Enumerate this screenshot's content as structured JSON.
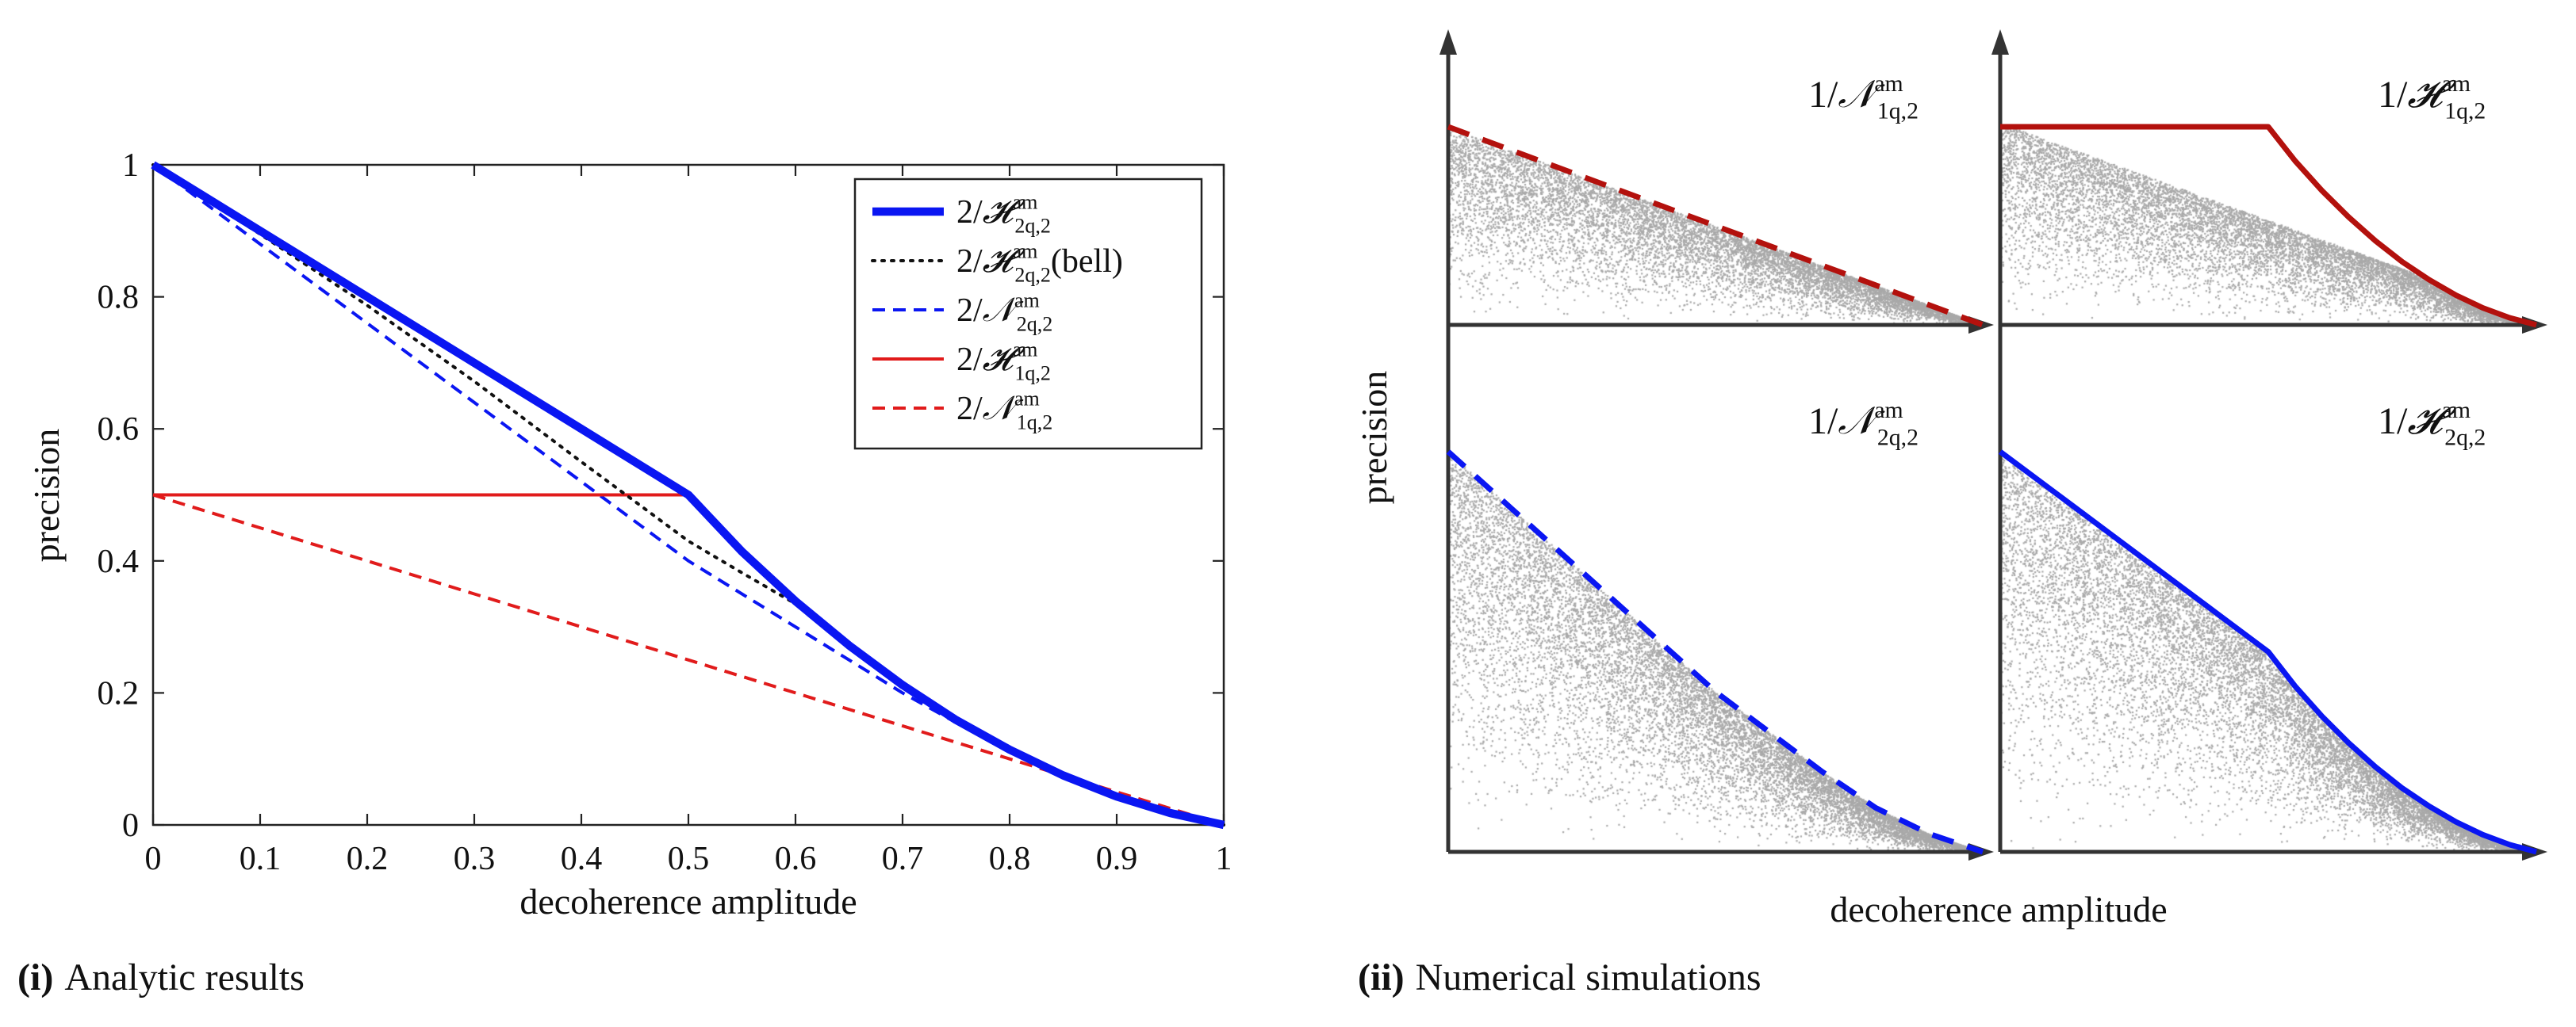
{
  "colors": {
    "blue": "#0a16f2",
    "red": "#e11b1b",
    "darkred": "#b3110d",
    "black": "#111111",
    "scatter": "#a9a9a9",
    "axis": "#333333"
  },
  "chart_data": [
    {
      "panel": "i",
      "type": "line",
      "title": "",
      "caption_tag": "(i)",
      "caption_text": "Analytic results",
      "xlabel": "decoherence amplitude",
      "ylabel": "precision",
      "xlim": [
        0,
        1
      ],
      "ylim": [
        0,
        1
      ],
      "xticks": [
        "0",
        "0.1",
        "0.2",
        "0.3",
        "0.4",
        "0.5",
        "0.6",
        "0.7",
        "0.8",
        "0.9",
        "1"
      ],
      "yticks": [
        "0",
        "0.2",
        "0.4",
        "0.6",
        "0.8",
        "1"
      ],
      "xtick_values": [
        0,
        0.1,
        0.2,
        0.3,
        0.4,
        0.5,
        0.6,
        0.7,
        0.8,
        0.9,
        1
      ],
      "ytick_values": [
        0,
        0.2,
        0.4,
        0.6,
        0.8,
        1
      ],
      "legend_position": "top-right",
      "series": [
        {
          "name": "2/H2q,2 am",
          "legend": {
            "pre": "2/",
            "sym": "𝓗",
            "sup": "am",
            "sub": "2q,2",
            "post": ""
          },
          "color": "blue",
          "style": "thick",
          "x": [
            0,
            0.1,
            0.2,
            0.3,
            0.4,
            0.5,
            0.55,
            0.6,
            0.65,
            0.7,
            0.75,
            0.8,
            0.85,
            0.9,
            0.95,
            1
          ],
          "y": [
            1,
            0.9,
            0.8,
            0.7,
            0.6,
            0.5,
            0.414,
            0.339,
            0.272,
            0.212,
            0.159,
            0.114,
            0.075,
            0.043,
            0.018,
            0
          ]
        },
        {
          "name": "2/H2q,2 am (bell)",
          "legend": {
            "pre": "2/",
            "sym": "𝓗",
            "sup": "am",
            "sub": "2q,2",
            "post": "(bell)"
          },
          "color": "black",
          "style": "dotted",
          "x": [
            0,
            0.1,
            0.2,
            0.3,
            0.4,
            0.5,
            0.55,
            0.6,
            0.65,
            0.7,
            0.75,
            0.8,
            0.85,
            0.9,
            0.95,
            1
          ],
          "y": [
            1,
            0.895,
            0.787,
            0.672,
            0.55,
            0.43,
            0.382,
            0.335,
            0.27,
            0.211,
            0.158,
            0.113,
            0.075,
            0.043,
            0.018,
            0
          ]
        },
        {
          "name": "2/N2q,2 am",
          "legend": {
            "pre": "2/",
            "sym": "𝒩",
            "sup": "am",
            "sub": "2q,2",
            "post": ""
          },
          "color": "blue",
          "style": "dashed",
          "x": [
            0,
            0.1,
            0.2,
            0.3,
            0.4,
            0.5,
            0.6,
            0.7,
            0.8,
            0.9,
            1
          ],
          "y": [
            1,
            0.88,
            0.76,
            0.64,
            0.52,
            0.4,
            0.3,
            0.2,
            0.11,
            0.045,
            0
          ]
        },
        {
          "name": "2/H1q,2 am",
          "legend": {
            "pre": "2/",
            "sym": "𝓗",
            "sup": "am",
            "sub": "1q,2",
            "post": ""
          },
          "color": "red",
          "style": "solid",
          "x": [
            0,
            0.1,
            0.2,
            0.3,
            0.4,
            0.5,
            0.55,
            0.6,
            0.65,
            0.7,
            0.75,
            0.8,
            0.85,
            0.9,
            0.95,
            1
          ],
          "y": [
            0.5,
            0.5,
            0.5,
            0.5,
            0.5,
            0.5,
            0.414,
            0.339,
            0.272,
            0.212,
            0.159,
            0.114,
            0.075,
            0.043,
            0.018,
            0
          ]
        },
        {
          "name": "2/N1q,2 am",
          "legend": {
            "pre": "2/",
            "sym": "𝒩",
            "sup": "am",
            "sub": "1q,2",
            "post": ""
          },
          "color": "red",
          "style": "dashed",
          "x": [
            0,
            0.1,
            0.2,
            0.3,
            0.4,
            0.5,
            0.6,
            0.7,
            0.8,
            0.9,
            1
          ],
          "y": [
            0.5,
            0.45,
            0.4,
            0.35,
            0.3,
            0.25,
            0.2,
            0.15,
            0.1,
            0.05,
            0
          ]
        }
      ]
    },
    {
      "panel": "ii",
      "type": "scatter",
      "caption_tag": "(ii)",
      "caption_text": "Numerical simulations",
      "xlabel": "decoherence amplitude",
      "ylabel": "precision",
      "subplots": [
        {
          "id": "tl",
          "label": {
            "pre": "1/",
            "sym": "𝒩",
            "sup": "am",
            "sub": "1q,2"
          },
          "color": "darkred",
          "style": "dashed",
          "x": [
            0,
            1
          ],
          "y": [
            1,
            0
          ],
          "seed": 11
        },
        {
          "id": "tr",
          "label": {
            "pre": "1/",
            "sym": "𝓗",
            "sup": "am",
            "sub": "1q,2"
          },
          "color": "darkred",
          "style": "solid",
          "x": [
            0,
            0.5,
            0.55,
            0.6,
            0.65,
            0.7,
            0.75,
            0.8,
            0.85,
            0.9,
            0.95,
            1
          ],
          "y": [
            1,
            1,
            0.828,
            0.678,
            0.544,
            0.424,
            0.318,
            0.228,
            0.15,
            0.086,
            0.036,
            0
          ],
          "seed": 23
        },
        {
          "id": "bl",
          "label": {
            "pre": "1/",
            "sym": "𝒩",
            "sup": "am",
            "sub": "2q,2"
          },
          "color": "blue",
          "style": "dashed",
          "x": [
            0,
            0.1,
            0.2,
            0.3,
            0.4,
            0.5,
            0.6,
            0.7,
            0.8,
            0.9,
            1
          ],
          "y": [
            1,
            0.88,
            0.76,
            0.64,
            0.52,
            0.4,
            0.3,
            0.2,
            0.11,
            0.045,
            0
          ],
          "seed": 37
        },
        {
          "id": "br",
          "label": {
            "pre": "1/",
            "sym": "𝓗",
            "sup": "am",
            "sub": "2q,2"
          },
          "color": "blue",
          "style": "solid",
          "x": [
            0,
            0.1,
            0.2,
            0.3,
            0.4,
            0.5,
            0.55,
            0.6,
            0.65,
            0.7,
            0.75,
            0.8,
            0.85,
            0.9,
            0.95,
            1
          ],
          "y": [
            1,
            0.9,
            0.8,
            0.7,
            0.6,
            0.5,
            0.414,
            0.339,
            0.272,
            0.212,
            0.159,
            0.114,
            0.075,
            0.043,
            0.018,
            0
          ],
          "seed": 51
        }
      ]
    }
  ]
}
